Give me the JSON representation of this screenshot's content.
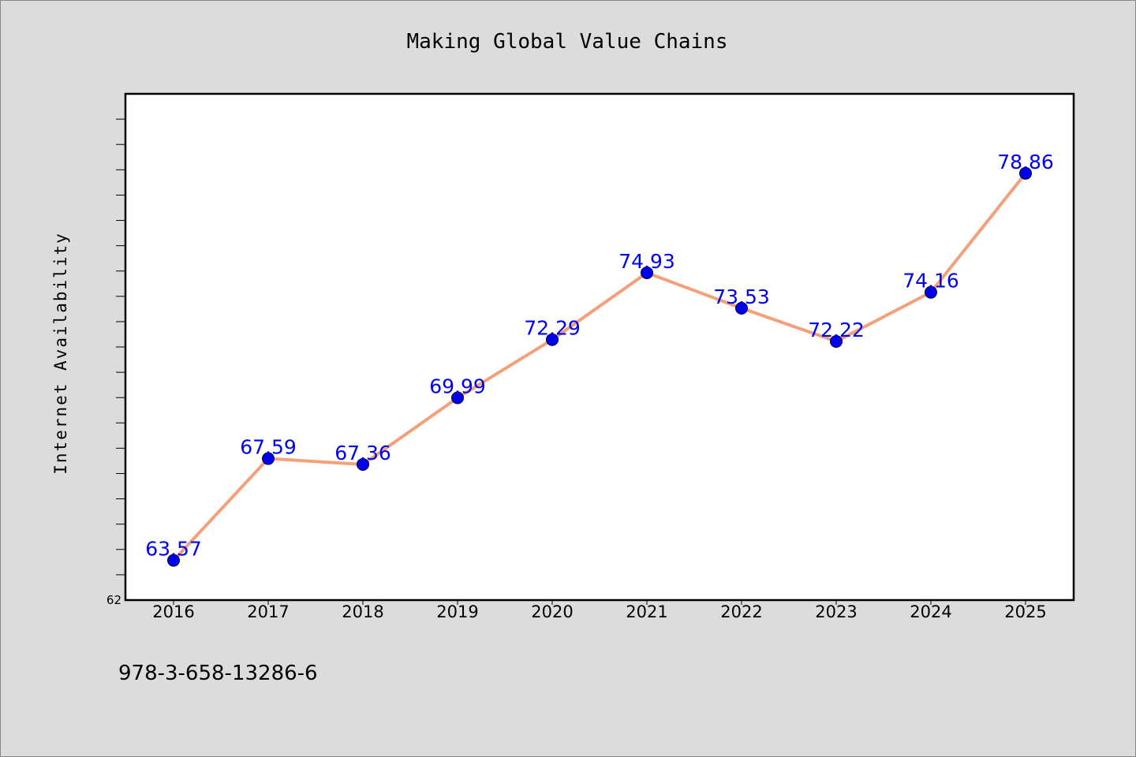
{
  "chart_data": {
    "type": "line",
    "title": "Making Global Value Chains",
    "xlabel": "",
    "ylabel": "Internet Availability",
    "categories": [
      "2016",
      "2017",
      "2018",
      "2019",
      "2020",
      "2021",
      "2022",
      "2023",
      "2024",
      "2025"
    ],
    "series": [
      {
        "values": [
          63.57,
          67.59,
          67.36,
          69.99,
          72.29,
          74.93,
          73.53,
          72.22,
          74.16,
          78.86
        ],
        "data_labels": [
          "63.57",
          "67.59",
          "67.36",
          "69.99",
          "72.29",
          "74.93",
          "73.53",
          "72.22",
          "74.16",
          "78.86"
        ]
      }
    ],
    "ylim": [
      62,
      82
    ],
    "yticklabels": [
      "62"
    ],
    "grid": false,
    "legend": "none",
    "colors": {
      "line": "#f4a07a",
      "marker": "#0000ee",
      "label": "#0000ee",
      "background": "#dcdcdc",
      "plot_background": "#ffffff"
    }
  },
  "footer": {
    "isbn": "978-3-658-13286-6"
  }
}
